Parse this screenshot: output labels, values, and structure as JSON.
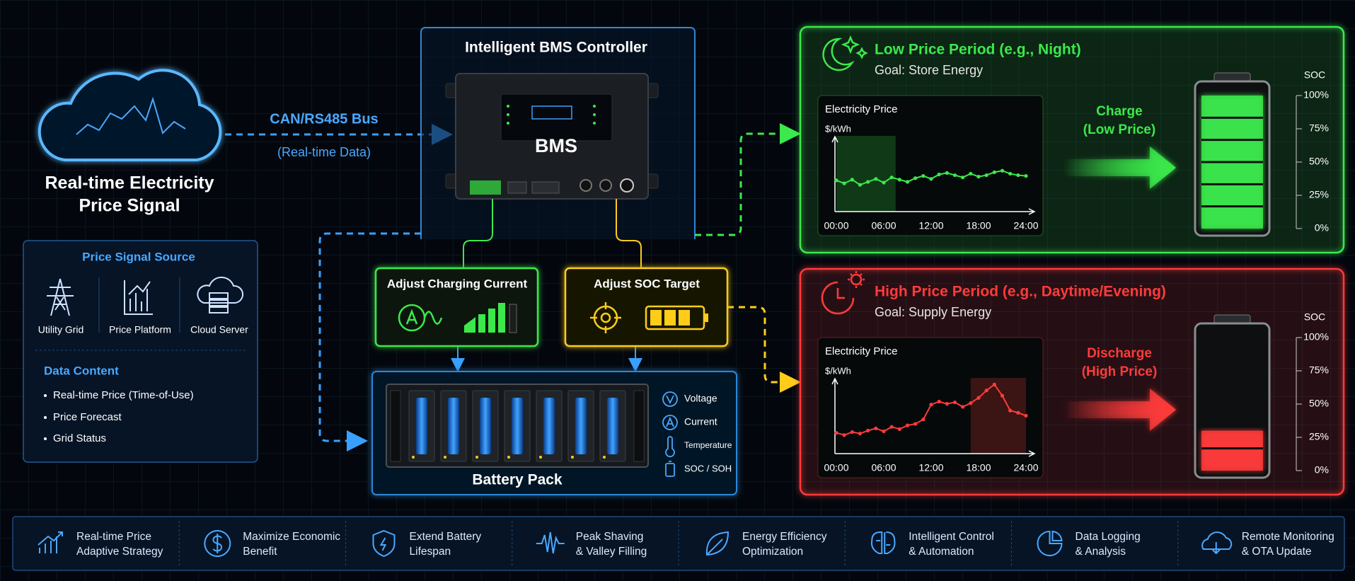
{
  "cloud": {
    "lines": [
      "Real-time Electricity",
      "Price Signal"
    ]
  },
  "bus": {
    "label": "CAN/RS485 Bus",
    "note": "(Real-time Data)"
  },
  "source_panel": {
    "title": "Price Signal Source",
    "sources": [
      "Utility Grid",
      "Price Platform",
      "Cloud Server"
    ],
    "content_title": "Data Content",
    "items": [
      "Real-time Price (Time-of-Use)",
      "Price Forecast",
      "Grid Status"
    ]
  },
  "controller": {
    "title": "Intelligent BMS Controller",
    "device": "BMS"
  },
  "actions": [
    "Adjust Charging Current",
    "Adjust SOC Target"
  ],
  "battery_pack": {
    "title": "Battery Pack",
    "sensors": [
      "Voltage",
      "Current",
      "Temperature",
      "SOC / SOH"
    ]
  },
  "panels": [
    {
      "title": "Low Price Period (e.g., Night)",
      "goal": "Goal: Store Energy",
      "color": "#3be94b",
      "chart": {
        "type": "line",
        "title": "Electricity Price",
        "ylabel": "$/kWh",
        "x": [
          0,
          1,
          2,
          3,
          4,
          5,
          6,
          7,
          8,
          9,
          10,
          11,
          12,
          13,
          14,
          15,
          16,
          17,
          18,
          19,
          20,
          21,
          22,
          23,
          24
        ],
        "values": [
          4.2,
          3.8,
          4.3,
          3.6,
          4.0,
          4.4,
          3.9,
          4.6,
          4.3,
          4.0,
          4.5,
          4.8,
          4.4,
          5.0,
          5.2,
          4.9,
          4.6,
          5.1,
          4.7,
          4.9,
          5.3,
          5.5,
          5.1,
          4.9,
          4.8
        ],
        "xlim": [
          0,
          24
        ],
        "ylim": [
          0,
          10
        ],
        "xticks": [
          {
            "value": 0,
            "label": "00:00"
          },
          {
            "value": 6,
            "label": "06:00"
          },
          {
            "value": 12,
            "label": "12:00"
          },
          {
            "value": 18,
            "label": "18:00"
          },
          {
            "value": 24,
            "label": "24:00"
          }
        ],
        "highlight": [
          0,
          7.5
        ]
      },
      "action": [
        "Charge",
        "(Low Price)"
      ],
      "soc": {
        "label": "SOC",
        "level": 100,
        "ticks": [
          {
            "value": 100,
            "label": "100%"
          },
          {
            "value": 75,
            "label": "75%"
          },
          {
            "value": 50,
            "label": "50%"
          },
          {
            "value": 25,
            "label": "25%"
          },
          {
            "value": 0,
            "label": "0%"
          }
        ]
      }
    },
    {
      "title": "High Price Period (e.g., Daytime/Evening)",
      "goal": "Goal: Supply Energy",
      "color": "#ff3b3b",
      "chart": {
        "type": "line",
        "title": "Electricity Price",
        "ylabel": "$/kWh",
        "x": [
          0,
          1,
          2,
          3,
          4,
          5,
          6,
          7,
          8,
          9,
          10,
          11,
          12,
          13,
          14,
          15,
          16,
          17,
          18,
          19,
          20,
          21,
          22,
          23,
          24
        ],
        "values": [
          2.8,
          2.5,
          2.9,
          2.7,
          3.1,
          3.4,
          3.0,
          3.6,
          3.3,
          3.8,
          4.0,
          4.6,
          6.6,
          7.0,
          6.7,
          6.9,
          6.3,
          6.8,
          7.5,
          8.5,
          9.3,
          7.8,
          5.8,
          5.5,
          5.1
        ],
        "xlim": [
          0,
          24
        ],
        "ylim": [
          0,
          10
        ],
        "xticks": [
          {
            "value": 0,
            "label": "00:00"
          },
          {
            "value": 6,
            "label": "06:00"
          },
          {
            "value": 12,
            "label": "12:00"
          },
          {
            "value": 18,
            "label": "18:00"
          },
          {
            "value": 24,
            "label": "24:00"
          }
        ],
        "highlight": [
          17,
          24
        ]
      },
      "action": [
        "Discharge",
        "(High Price)"
      ],
      "soc": {
        "label": "SOC",
        "level": 30,
        "ticks": [
          {
            "value": 100,
            "label": "100%"
          },
          {
            "value": 75,
            "label": "75%"
          },
          {
            "value": 50,
            "label": "50%"
          },
          {
            "value": 25,
            "label": "25%"
          },
          {
            "value": 0,
            "label": "0%"
          }
        ]
      }
    }
  ],
  "features": [
    [
      "Real-time Price",
      "Adaptive Strategy"
    ],
    [
      "Maximize Economic",
      "Benefit"
    ],
    [
      "Extend Battery",
      "Lifespan"
    ],
    [
      "Peak Shaving",
      "& Valley Filling"
    ],
    [
      "Energy Efficiency",
      "Optimization"
    ],
    [
      "Intelligent Control",
      "& Automation"
    ],
    [
      "Data Logging",
      "& Analysis"
    ],
    [
      "Remote Monitoring",
      "& OTA Update"
    ]
  ]
}
